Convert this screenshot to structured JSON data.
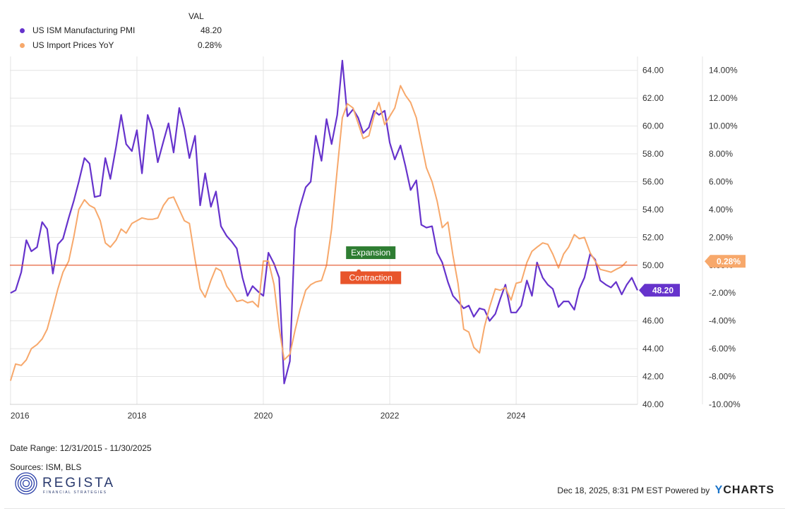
{
  "legend": {
    "header": "VAL",
    "series": [
      {
        "name": "US ISM Manufacturing PMI",
        "value": "48.20",
        "color": "#6633cc"
      },
      {
        "name": "US Import Prices YoY",
        "value": "0.28%",
        "color": "#f7a86b"
      }
    ]
  },
  "footer": {
    "date_range": "Date Range: 12/31/2015 - 11/30/2025",
    "sources": "Sources: ISM, BLS",
    "timestamp": "Dec 18, 2025, 8:31 PM EST Powered by",
    "brand": "CHARTS",
    "brand_initial": "Y"
  },
  "logo": {
    "name": "REGISTA",
    "tagline": "FINANCIAL STRATEGIES"
  },
  "chart_data": {
    "type": "line",
    "x_range": [
      2015.99,
      2025.92
    ],
    "x_ticks": [
      {
        "value": 2016,
        "label": "2016"
      },
      {
        "value": 2018,
        "label": "2018"
      },
      {
        "value": 2020,
        "label": "2020"
      },
      {
        "value": 2022,
        "label": "2022"
      },
      {
        "value": 2024,
        "label": "2024"
      }
    ],
    "left_axis": {
      "range": [
        40,
        65
      ],
      "ticks": [
        40,
        42,
        44,
        46,
        48,
        50,
        52,
        54,
        56,
        58,
        60,
        62,
        64
      ],
      "tick_labels": [
        "40.00",
        "42.00",
        "44.00",
        "46.00",
        "48.00",
        "50.00",
        "52.00",
        "54.00",
        "56.00",
        "58.00",
        "60.00",
        "62.00",
        "64.00"
      ]
    },
    "right_axis": {
      "range": [
        -10,
        15
      ],
      "ticks": [
        -10,
        -8,
        -6,
        -4,
        -2,
        0,
        2,
        4,
        6,
        8,
        10,
        12,
        14
      ],
      "tick_labels": [
        "-10.00%",
        "-8.00%",
        "-6.00%",
        "-4.00%",
        "-2.00%",
        "0.00%",
        "2.00%",
        "4.00%",
        "6.00%",
        "8.00%",
        "10.00%",
        "12.00%",
        "14.00%"
      ]
    },
    "reference_line": {
      "value": 50,
      "color": "#e8552b"
    },
    "annotations": [
      {
        "text": "Expansion",
        "color": "#2e7d32",
        "x": 2021.7,
        "y": 50.9
      },
      {
        "text": "Contraction",
        "color": "#e8552b",
        "x": 2021.7,
        "y": 49.1
      }
    ],
    "end_labels": [
      {
        "text": "48.20",
        "series": 0,
        "color": "#6633cc"
      },
      {
        "text": "0.28%",
        "series": 1,
        "color": "#f7a86b"
      }
    ],
    "series": [
      {
        "name": "US ISM Manufacturing PMI",
        "axis": "left",
        "color": "#6633cc",
        "points": [
          [
            2016.0,
            48.0
          ],
          [
            2016.08,
            48.2
          ],
          [
            2016.17,
            49.5
          ],
          [
            2016.25,
            51.8
          ],
          [
            2016.33,
            51.0
          ],
          [
            2016.42,
            51.3
          ],
          [
            2016.5,
            53.1
          ],
          [
            2016.58,
            52.6
          ],
          [
            2016.67,
            49.4
          ],
          [
            2016.75,
            51.5
          ],
          [
            2016.83,
            51.9
          ],
          [
            2016.92,
            53.4
          ],
          [
            2017.0,
            54.6
          ],
          [
            2017.08,
            56.0
          ],
          [
            2017.17,
            57.7
          ],
          [
            2017.25,
            57.3
          ],
          [
            2017.33,
            54.9
          ],
          [
            2017.42,
            55.0
          ],
          [
            2017.5,
            57.7
          ],
          [
            2017.58,
            56.2
          ],
          [
            2017.67,
            58.5
          ],
          [
            2017.75,
            60.8
          ],
          [
            2017.83,
            58.7
          ],
          [
            2017.92,
            58.2
          ],
          [
            2018.0,
            59.7
          ],
          [
            2018.08,
            56.6
          ],
          [
            2018.17,
            60.8
          ],
          [
            2018.25,
            59.7
          ],
          [
            2018.33,
            57.4
          ],
          [
            2018.42,
            58.9
          ],
          [
            2018.5,
            60.2
          ],
          [
            2018.58,
            58.1
          ],
          [
            2018.67,
            61.3
          ],
          [
            2018.75,
            59.8
          ],
          [
            2018.83,
            57.7
          ],
          [
            2018.92,
            59.3
          ],
          [
            2019.0,
            54.3
          ],
          [
            2019.08,
            56.6
          ],
          [
            2019.17,
            54.2
          ],
          [
            2019.25,
            55.3
          ],
          [
            2019.33,
            52.8
          ],
          [
            2019.42,
            52.1
          ],
          [
            2019.5,
            51.7
          ],
          [
            2019.58,
            51.2
          ],
          [
            2019.67,
            49.1
          ],
          [
            2019.75,
            47.8
          ],
          [
            2019.83,
            48.5
          ],
          [
            2019.92,
            48.1
          ],
          [
            2020.0,
            47.8
          ],
          [
            2020.08,
            50.9
          ],
          [
            2020.17,
            50.1
          ],
          [
            2020.25,
            49.1
          ],
          [
            2020.33,
            41.5
          ],
          [
            2020.42,
            43.1
          ],
          [
            2020.5,
            52.6
          ],
          [
            2020.58,
            54.2
          ],
          [
            2020.67,
            55.6
          ],
          [
            2020.75,
            56.0
          ],
          [
            2020.83,
            59.3
          ],
          [
            2020.92,
            57.5
          ],
          [
            2021.0,
            60.5
          ],
          [
            2021.08,
            58.7
          ],
          [
            2021.17,
            60.8
          ],
          [
            2021.25,
            64.7
          ],
          [
            2021.33,
            60.7
          ],
          [
            2021.42,
            61.2
          ],
          [
            2021.5,
            60.6
          ],
          [
            2021.58,
            59.5
          ],
          [
            2021.67,
            59.9
          ],
          [
            2021.75,
            61.1
          ],
          [
            2021.83,
            60.8
          ],
          [
            2021.92,
            61.1
          ],
          [
            2022.0,
            58.8
          ],
          [
            2022.08,
            57.6
          ],
          [
            2022.17,
            58.6
          ],
          [
            2022.25,
            57.1
          ],
          [
            2022.33,
            55.4
          ],
          [
            2022.42,
            56.1
          ],
          [
            2022.5,
            52.9
          ],
          [
            2022.58,
            52.7
          ],
          [
            2022.67,
            52.8
          ],
          [
            2022.75,
            50.9
          ],
          [
            2022.83,
            50.2
          ],
          [
            2022.92,
            48.8
          ],
          [
            2023.0,
            47.8
          ],
          [
            2023.08,
            47.4
          ],
          [
            2023.17,
            46.9
          ],
          [
            2023.25,
            47.1
          ],
          [
            2023.33,
            46.3
          ],
          [
            2023.42,
            46.9
          ],
          [
            2023.5,
            46.8
          ],
          [
            2023.58,
            46.0
          ],
          [
            2023.67,
            46.5
          ],
          [
            2023.75,
            47.6
          ],
          [
            2023.83,
            48.6
          ],
          [
            2023.92,
            46.6
          ],
          [
            2024.0,
            46.6
          ],
          [
            2024.08,
            47.1
          ],
          [
            2024.17,
            48.9
          ],
          [
            2024.25,
            47.8
          ],
          [
            2024.33,
            50.2
          ],
          [
            2024.42,
            49.1
          ],
          [
            2024.5,
            48.6
          ],
          [
            2024.58,
            48.3
          ],
          [
            2024.67,
            47.0
          ],
          [
            2024.75,
            47.4
          ],
          [
            2024.83,
            47.4
          ],
          [
            2024.92,
            46.8
          ],
          [
            2025.0,
            48.3
          ],
          [
            2025.08,
            49.1
          ],
          [
            2025.17,
            50.8
          ],
          [
            2025.25,
            50.4
          ],
          [
            2025.33,
            48.9
          ],
          [
            2025.42,
            48.6
          ],
          [
            2025.5,
            48.4
          ],
          [
            2025.58,
            48.8
          ],
          [
            2025.67,
            47.9
          ],
          [
            2025.75,
            48.6
          ],
          [
            2025.83,
            49.1
          ],
          [
            2025.92,
            48.2
          ]
        ]
      },
      {
        "name": "US Import Prices YoY",
        "axis": "right",
        "color": "#f7a86b",
        "points": [
          [
            2016.0,
            -8.3
          ],
          [
            2016.08,
            -7.1
          ],
          [
            2016.17,
            -7.2
          ],
          [
            2016.25,
            -6.8
          ],
          [
            2016.33,
            -6.0
          ],
          [
            2016.42,
            -5.7
          ],
          [
            2016.5,
            -5.3
          ],
          [
            2016.58,
            -4.6
          ],
          [
            2016.67,
            -3.1
          ],
          [
            2016.75,
            -1.7
          ],
          [
            2016.83,
            -0.5
          ],
          [
            2016.92,
            0.3
          ],
          [
            2017.0,
            2.0
          ],
          [
            2017.08,
            4.0
          ],
          [
            2017.17,
            4.7
          ],
          [
            2017.25,
            4.3
          ],
          [
            2017.33,
            4.1
          ],
          [
            2017.42,
            3.2
          ],
          [
            2017.5,
            1.6
          ],
          [
            2017.58,
            1.3
          ],
          [
            2017.67,
            1.8
          ],
          [
            2017.75,
            2.6
          ],
          [
            2017.83,
            2.3
          ],
          [
            2017.92,
            3.0
          ],
          [
            2018.0,
            3.2
          ],
          [
            2018.08,
            3.4
          ],
          [
            2018.17,
            3.3
          ],
          [
            2018.25,
            3.3
          ],
          [
            2018.33,
            3.4
          ],
          [
            2018.42,
            4.3
          ],
          [
            2018.5,
            4.8
          ],
          [
            2018.58,
            4.9
          ],
          [
            2018.67,
            4.0
          ],
          [
            2018.75,
            3.2
          ],
          [
            2018.83,
            3.0
          ],
          [
            2018.92,
            0.4
          ],
          [
            2019.0,
            -1.7
          ],
          [
            2019.08,
            -2.3
          ],
          [
            2019.17,
            -1.1
          ],
          [
            2019.25,
            -0.2
          ],
          [
            2019.33,
            -0.4
          ],
          [
            2019.42,
            -1.5
          ],
          [
            2019.5,
            -2.0
          ],
          [
            2019.58,
            -2.6
          ],
          [
            2019.67,
            -2.5
          ],
          [
            2019.75,
            -2.7
          ],
          [
            2019.83,
            -2.6
          ],
          [
            2019.92,
            -3.0
          ],
          [
            2020.0,
            0.3
          ],
          [
            2020.08,
            0.3
          ],
          [
            2020.17,
            -1.4
          ],
          [
            2020.25,
            -4.5
          ],
          [
            2020.33,
            -6.8
          ],
          [
            2020.42,
            -6.4
          ],
          [
            2020.5,
            -4.7
          ],
          [
            2020.58,
            -3.2
          ],
          [
            2020.67,
            -1.8
          ],
          [
            2020.75,
            -1.4
          ],
          [
            2020.83,
            -1.2
          ],
          [
            2020.92,
            -1.1
          ],
          [
            2021.0,
            0.0
          ],
          [
            2021.08,
            2.6
          ],
          [
            2021.17,
            6.9
          ],
          [
            2021.25,
            10.6
          ],
          [
            2021.33,
            11.6
          ],
          [
            2021.42,
            11.3
          ],
          [
            2021.5,
            10.2
          ],
          [
            2021.58,
            9.1
          ],
          [
            2021.67,
            9.3
          ],
          [
            2021.75,
            10.7
          ],
          [
            2021.83,
            11.7
          ],
          [
            2021.92,
            10.1
          ],
          [
            2022.0,
            10.7
          ],
          [
            2022.08,
            11.3
          ],
          [
            2022.17,
            12.9
          ],
          [
            2022.25,
            12.2
          ],
          [
            2022.33,
            11.7
          ],
          [
            2022.42,
            10.6
          ],
          [
            2022.5,
            8.8
          ],
          [
            2022.58,
            7.0
          ],
          [
            2022.67,
            6.0
          ],
          [
            2022.75,
            4.6
          ],
          [
            2022.83,
            2.7
          ],
          [
            2022.92,
            3.1
          ],
          [
            2023.0,
            0.7
          ],
          [
            2023.08,
            -1.3
          ],
          [
            2023.17,
            -4.6
          ],
          [
            2023.25,
            -4.8
          ],
          [
            2023.33,
            -5.9
          ],
          [
            2023.42,
            -6.3
          ],
          [
            2023.5,
            -4.4
          ],
          [
            2023.58,
            -3.0
          ],
          [
            2023.67,
            -1.7
          ],
          [
            2023.75,
            -1.8
          ],
          [
            2023.83,
            -1.6
          ],
          [
            2023.92,
            -2.5
          ],
          [
            2024.0,
            -1.3
          ],
          [
            2024.08,
            -1.2
          ],
          [
            2024.17,
            0.2
          ],
          [
            2024.25,
            1.0
          ],
          [
            2024.33,
            1.3
          ],
          [
            2024.42,
            1.6
          ],
          [
            2024.5,
            1.5
          ],
          [
            2024.58,
            0.8
          ],
          [
            2024.67,
            -0.2
          ],
          [
            2024.75,
            0.8
          ],
          [
            2024.83,
            1.3
          ],
          [
            2024.92,
            2.2
          ],
          [
            2025.0,
            1.9
          ],
          [
            2025.08,
            2.0
          ],
          [
            2025.17,
            0.9
          ],
          [
            2025.25,
            0.3
          ],
          [
            2025.33,
            -0.3
          ],
          [
            2025.42,
            -0.4
          ],
          [
            2025.5,
            -0.5
          ],
          [
            2025.58,
            -0.3
          ],
          [
            2025.67,
            -0.1
          ],
          [
            2025.75,
            0.28
          ]
        ]
      }
    ]
  }
}
